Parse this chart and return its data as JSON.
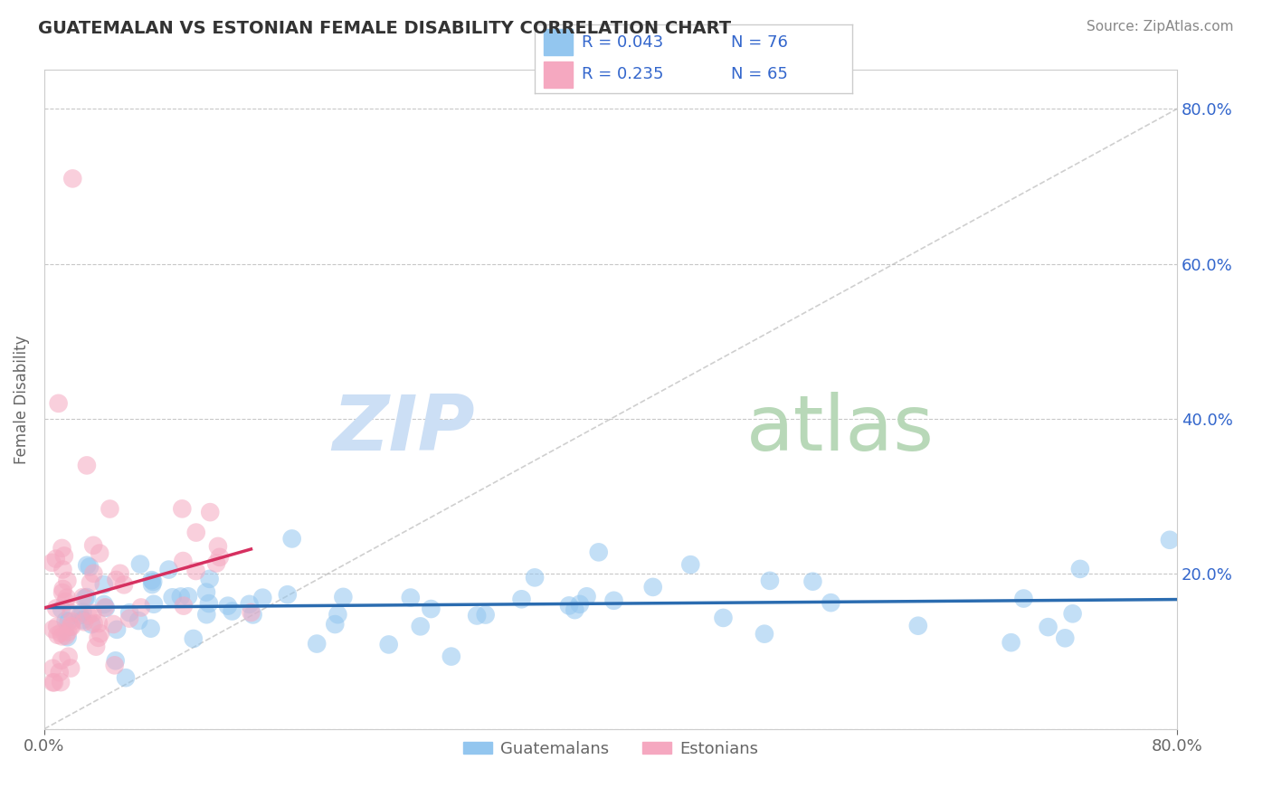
{
  "title": "GUATEMALAN VS ESTONIAN FEMALE DISABILITY CORRELATION CHART",
  "source": "Source: ZipAtlas.com",
  "ylabel": "Female Disability",
  "legend_label1": "Guatemalans",
  "legend_label2": "Estonians",
  "xlim": [
    0.0,
    0.8
  ],
  "ylim": [
    0.0,
    0.85
  ],
  "background_color": "#ffffff",
  "grid_color": "#c8c8c8",
  "blue_color": "#93c6ef",
  "pink_color": "#f5a8c0",
  "blue_line_color": "#2b6cb0",
  "pink_line_color": "#d63060",
  "diag_line_color": "#bbbbbb",
  "watermark_zip_color": "#ccdff5",
  "watermark_atlas_color": "#d0e8d0",
  "title_color": "#333333",
  "axis_label_color": "#666666",
  "tick_color": "#3366cc",
  "legend_r_color": "#3366cc",
  "legend_n_color": "#3366cc"
}
